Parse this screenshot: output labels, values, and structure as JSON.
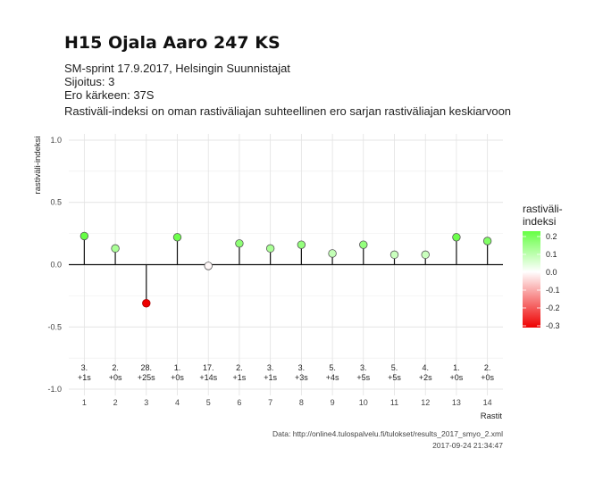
{
  "chart_data": {
    "type": "lollipop",
    "title": "H15 Ojala Aaro 247 KS",
    "subtitle_lines": [
      "SM-sprint 17.9.2017, Helsingin Suunnistajat",
      "Sijoitus: 3",
      "Ero kärkeen: 37S",
      "Rastiväli-indeksi on oman rastiväliajan suhteellinen ero sarjan rastiväliajan keskiarvoon"
    ],
    "xlabel": "Rastit",
    "ylabel": "rastiväli-indeksi",
    "ylim": [
      -1.05,
      1.05
    ],
    "yticks": [
      -1.0,
      -0.5,
      0.0,
      0.5,
      1.0
    ],
    "ytick_labels": [
      "-1.0",
      "-0.5",
      "0.0",
      "0.5",
      "1.0"
    ],
    "x": [
      1,
      2,
      3,
      4,
      5,
      6,
      7,
      8,
      9,
      10,
      11,
      12,
      13,
      14
    ],
    "values": [
      0.23,
      0.13,
      -0.31,
      0.22,
      -0.01,
      0.17,
      0.13,
      0.16,
      0.09,
      0.16,
      0.08,
      0.08,
      0.22,
      0.19
    ],
    "annotations_rank": [
      "3.",
      "2.",
      "28.",
      "1.",
      "17.",
      "2.",
      "3.",
      "3.",
      "5.",
      "3.",
      "5.",
      "4.",
      "1.",
      "2."
    ],
    "annotations_diff": [
      "+1s",
      "+0s",
      "+25s",
      "+0s",
      "+14s",
      "+1s",
      "+1s",
      "+3s",
      "+4s",
      "+5s",
      "+5s",
      "+2s",
      "+0s",
      "+0s"
    ],
    "legend": {
      "title_lines": [
        "rastiväli-",
        "indeksi"
      ],
      "placement": "right",
      "ticks": [
        0.2,
        0.1,
        0.0,
        -0.1,
        -0.2,
        -0.3
      ],
      "tick_labels": [
        "0.2",
        "0.1",
        "0.0",
        "-0.1",
        "-0.2",
        "-0.3"
      ],
      "range": [
        -0.31,
        0.23
      ],
      "color_high": "#66ff44",
      "color_mid": "#ffffff",
      "color_low": "#ee0000"
    },
    "grid": true
  },
  "caption_lines": [
    "Data: http://online4.tulospalvelu.fi/tulokset/results_2017_smyo_2.xml",
    "2017-09-24 21:34:47"
  ]
}
